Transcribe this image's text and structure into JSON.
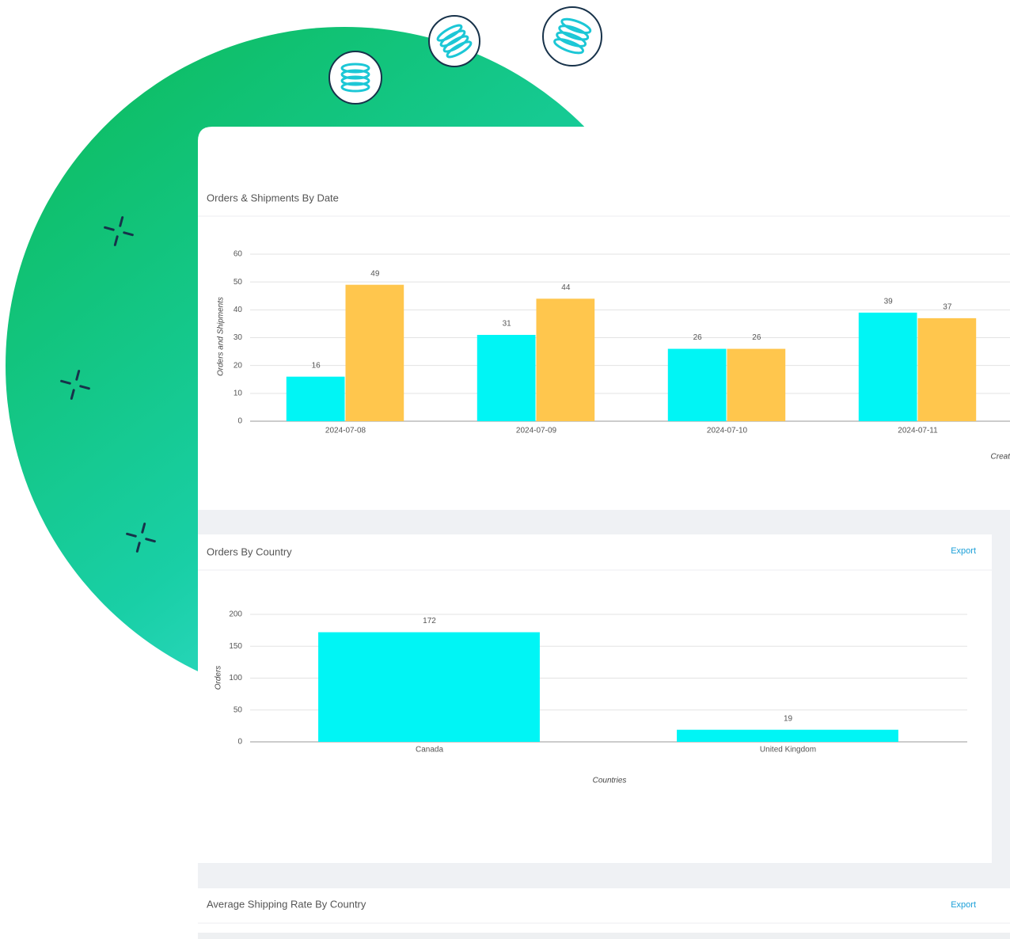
{
  "panels": [
    {
      "title": "Orders & Shipments By Date",
      "chart": {
        "type": "bar",
        "categories": [
          "2024-07-08",
          "2024-07-09",
          "2024-07-10",
          "2024-07-11"
        ],
        "series": [
          {
            "color": "#00f5f5",
            "values": [
              16,
              31,
              26,
              39
            ]
          },
          {
            "color": "#ffc64d",
            "values": [
              49,
              44,
              26,
              37
            ]
          }
        ],
        "ylim": [
          0,
          60
        ],
        "yticks": [
          0,
          10,
          20,
          30,
          40,
          50,
          60
        ],
        "grid": true,
        "y_label": "Orders and Shipments",
        "x_label": "Creat"
      }
    },
    {
      "title": "Orders By Country",
      "action": "Export",
      "chart": {
        "type": "bar",
        "categories": [
          "Canada",
          "United Kingdom"
        ],
        "series": [
          {
            "color": "#00f5f5",
            "values": [
              172,
              19
            ]
          }
        ],
        "ylim": [
          0,
          200
        ],
        "yticks": [
          0,
          50,
          100,
          150,
          200
        ],
        "grid": true,
        "y_label": "Orders",
        "x_label": "Countries"
      }
    },
    {
      "title": "Average Shipping Rate By Country",
      "action": "Export"
    }
  ]
}
